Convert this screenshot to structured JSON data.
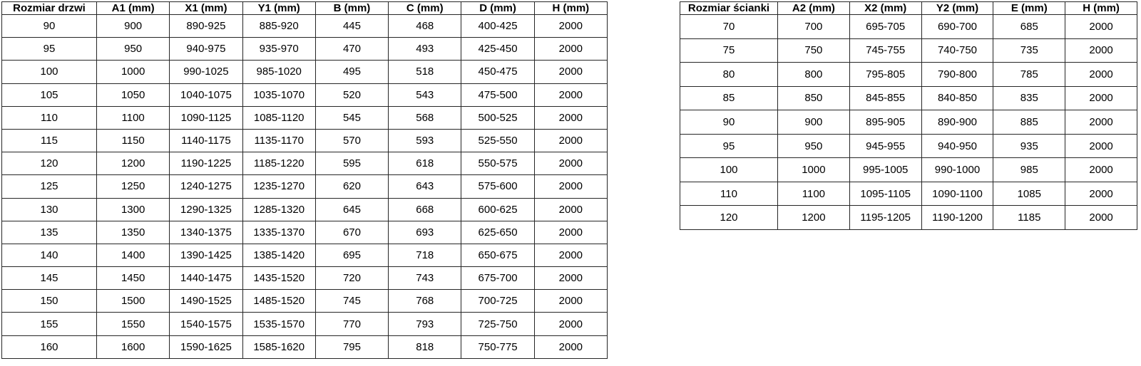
{
  "colors": {
    "background": "#ffffff",
    "border": "#262626",
    "text": "#000000"
  },
  "door_table": {
    "name": "door-dimensions-table",
    "headers": [
      "Rozmiar drzwi",
      "A1 (mm)",
      "X1 (mm)",
      "Y1 (mm)",
      "B (mm)",
      "C (mm)",
      "D (mm)",
      "H (mm)"
    ],
    "rows": [
      [
        "90",
        "900",
        "890-925",
        "885-920",
        "445",
        "468",
        "400-425",
        "2000"
      ],
      [
        "95",
        "950",
        "940-975",
        "935-970",
        "470",
        "493",
        "425-450",
        "2000"
      ],
      [
        "100",
        "1000",
        "990-1025",
        "985-1020",
        "495",
        "518",
        "450-475",
        "2000"
      ],
      [
        "105",
        "1050",
        "1040-1075",
        "1035-1070",
        "520",
        "543",
        "475-500",
        "2000"
      ],
      [
        "110",
        "1100",
        "1090-1125",
        "1085-1120",
        "545",
        "568",
        "500-525",
        "2000"
      ],
      [
        "115",
        "1150",
        "1140-1175",
        "1135-1170",
        "570",
        "593",
        "525-550",
        "2000"
      ],
      [
        "120",
        "1200",
        "1190-1225",
        "1185-1220",
        "595",
        "618",
        "550-575",
        "2000"
      ],
      [
        "125",
        "1250",
        "1240-1275",
        "1235-1270",
        "620",
        "643",
        "575-600",
        "2000"
      ],
      [
        "130",
        "1300",
        "1290-1325",
        "1285-1320",
        "645",
        "668",
        "600-625",
        "2000"
      ],
      [
        "135",
        "1350",
        "1340-1375",
        "1335-1370",
        "670",
        "693",
        "625-650",
        "2000"
      ],
      [
        "140",
        "1400",
        "1390-1425",
        "1385-1420",
        "695",
        "718",
        "650-675",
        "2000"
      ],
      [
        "145",
        "1450",
        "1440-1475",
        "1435-1520",
        "720",
        "743",
        "675-700",
        "2000"
      ],
      [
        "150",
        "1500",
        "1490-1525",
        "1485-1520",
        "745",
        "768",
        "700-725",
        "2000"
      ],
      [
        "155",
        "1550",
        "1540-1575",
        "1535-1570",
        "770",
        "793",
        "725-750",
        "2000"
      ],
      [
        "160",
        "1600",
        "1590-1625",
        "1585-1620",
        "795",
        "818",
        "750-775",
        "2000"
      ]
    ]
  },
  "wall_table": {
    "name": "wall-dimensions-table",
    "headers": [
      "Rozmiar ścianki",
      "A2 (mm)",
      "X2 (mm)",
      "Y2 (mm)",
      "E (mm)",
      "H (mm)"
    ],
    "rows": [
      [
        "70",
        "700",
        "695-705",
        "690-700",
        "685",
        "2000"
      ],
      [
        "75",
        "750",
        "745-755",
        "740-750",
        "735",
        "2000"
      ],
      [
        "80",
        "800",
        "795-805",
        "790-800",
        "785",
        "2000"
      ],
      [
        "85",
        "850",
        "845-855",
        "840-850",
        "835",
        "2000"
      ],
      [
        "90",
        "900",
        "895-905",
        "890-900",
        "885",
        "2000"
      ],
      [
        "95",
        "950",
        "945-955",
        "940-950",
        "935",
        "2000"
      ],
      [
        "100",
        "1000",
        "995-1005",
        "990-1000",
        "985",
        "2000"
      ],
      [
        "110",
        "1100",
        "1095-1105",
        "1090-1100",
        "1085",
        "2000"
      ],
      [
        "120",
        "1200",
        "1195-1205",
        "1190-1200",
        "1185",
        "2000"
      ]
    ]
  }
}
